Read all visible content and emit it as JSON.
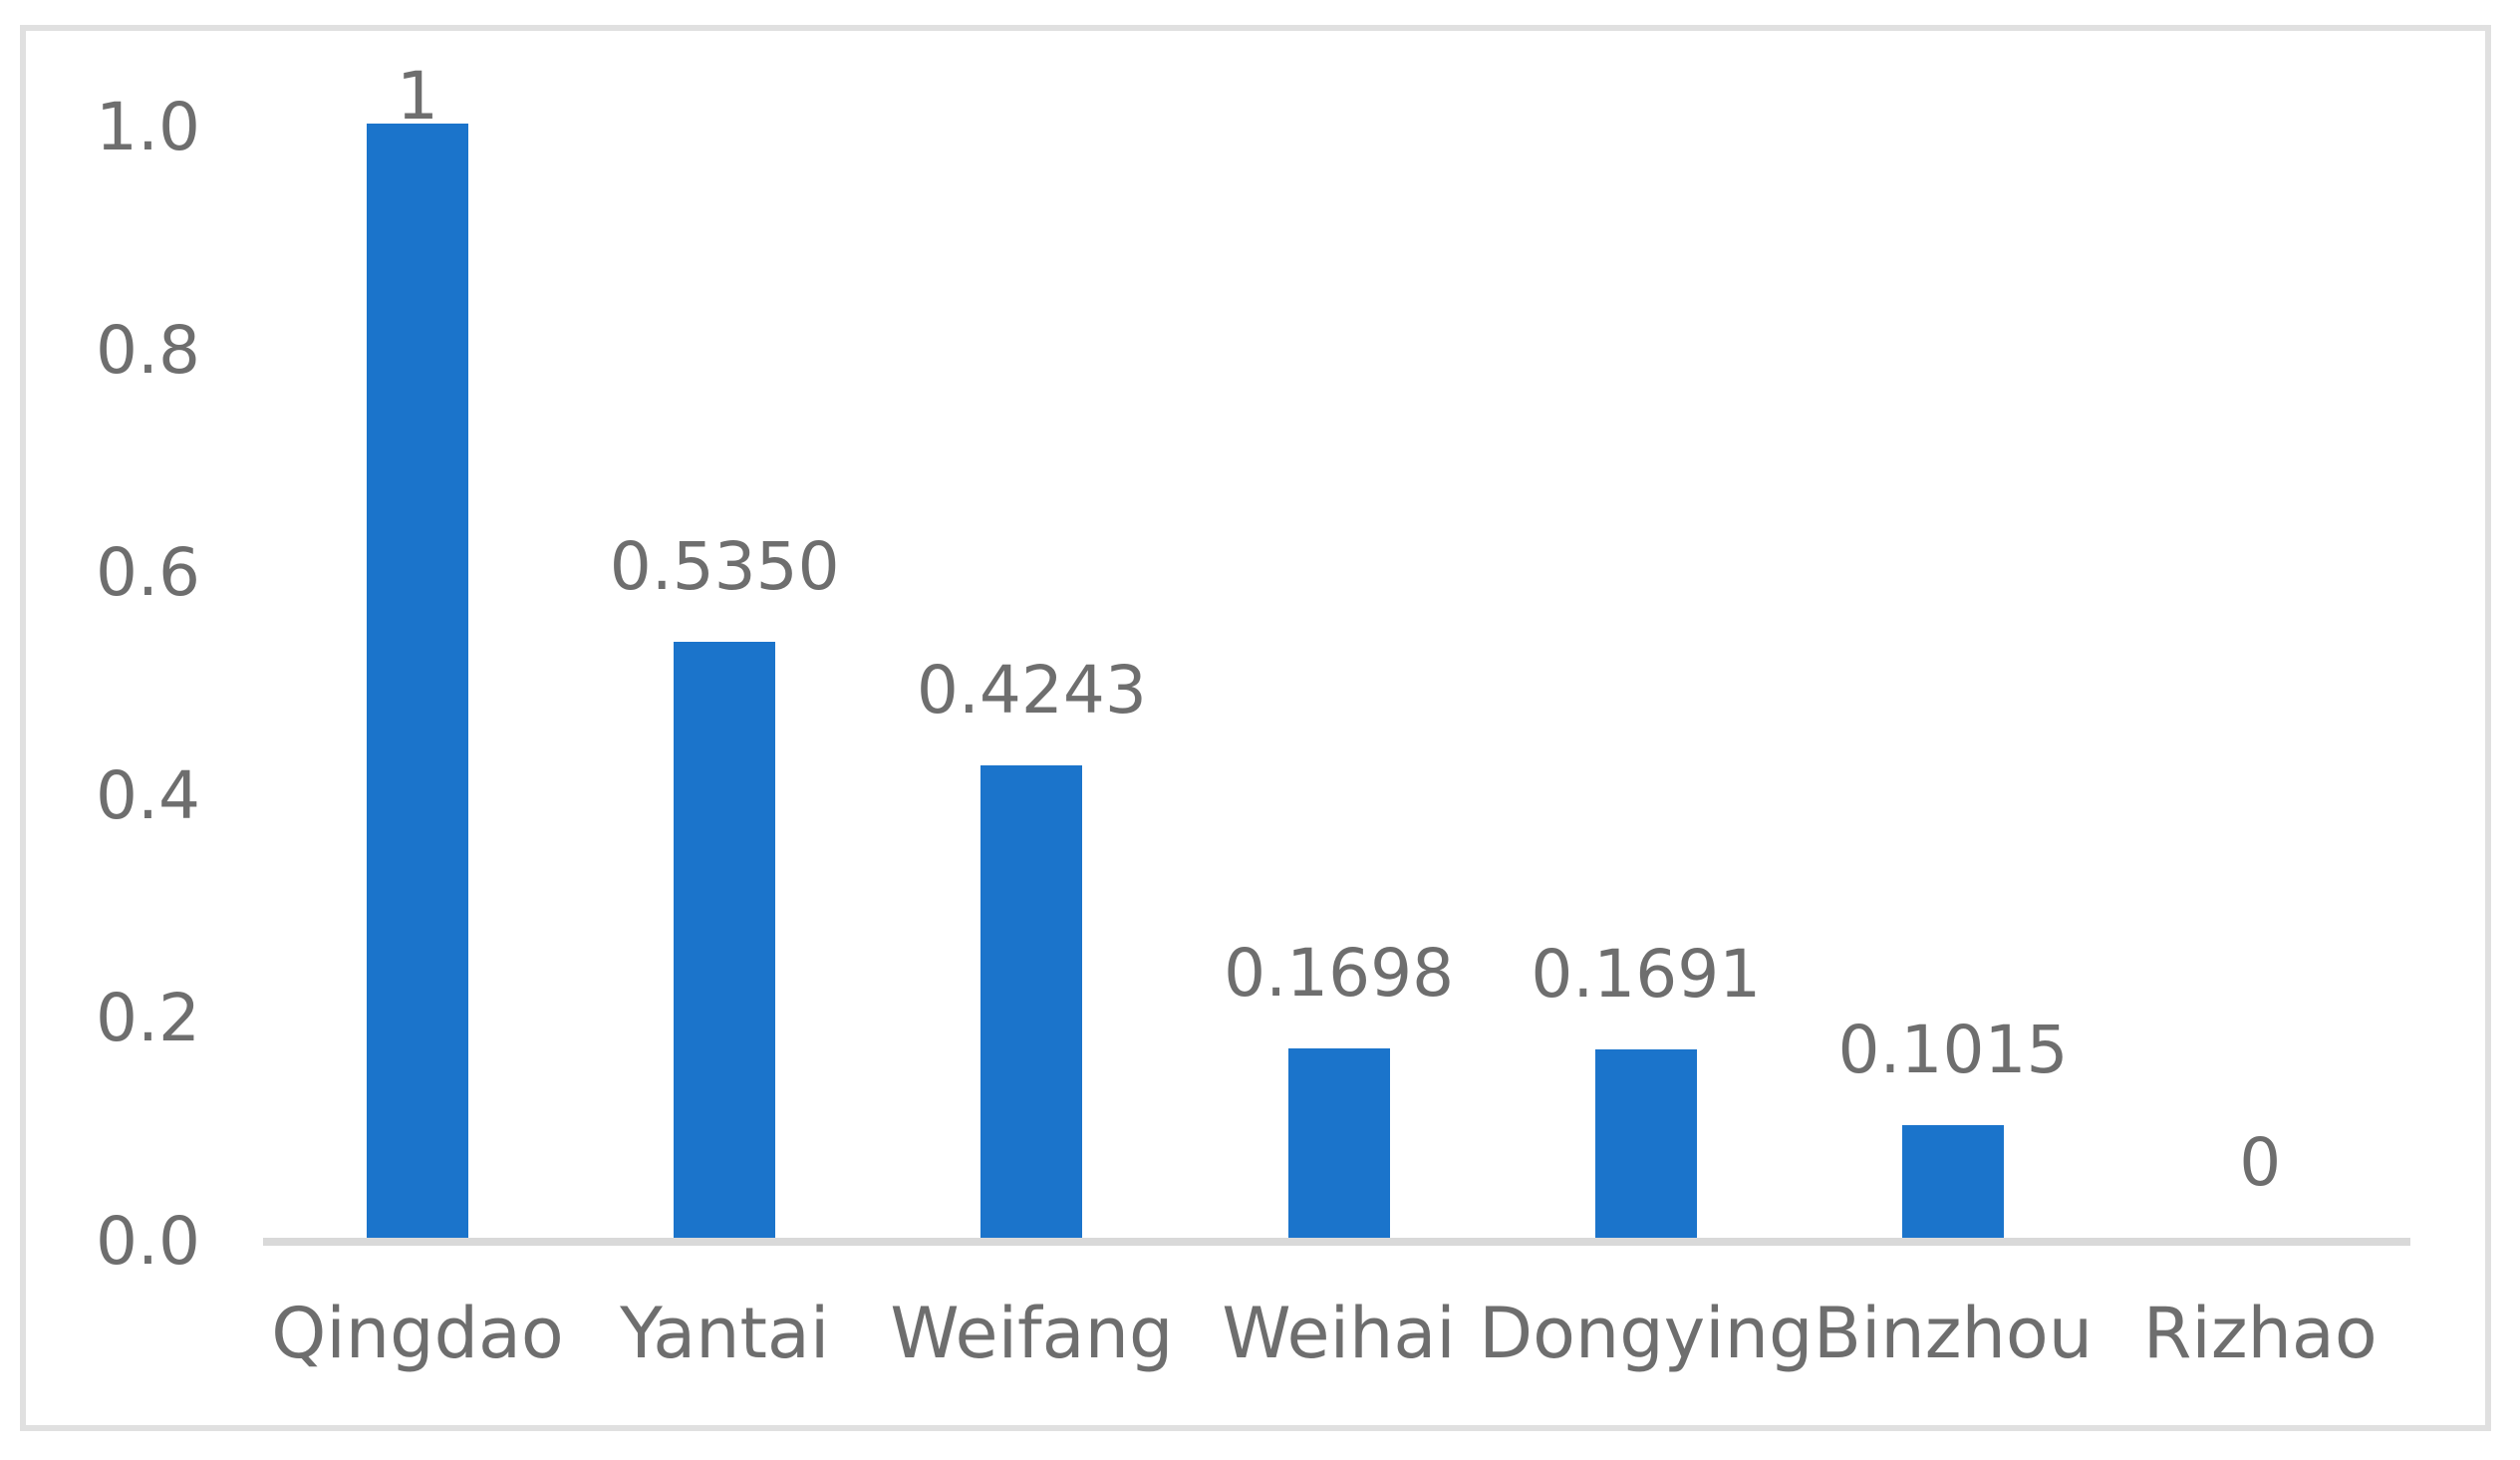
{
  "chart_data": {
    "type": "bar",
    "title": "",
    "xlabel": "",
    "ylabel": "",
    "categories": [
      "Qingdao",
      "Yantai",
      "Weifang",
      "Weihai",
      "Dongying",
      "Binzhou",
      "Rizhao"
    ],
    "values": [
      1.0,
      0.535,
      0.4243,
      0.1698,
      0.1691,
      0.1015,
      0
    ],
    "data_labels": [
      "1",
      "0.5350",
      "0.4243",
      "0.1698",
      "0.1691",
      "0.1015",
      "0"
    ],
    "y_ticks": [
      {
        "label": "1.0",
        "value": 1.0
      },
      {
        "label": "0.8",
        "value": 0.8
      },
      {
        "label": "0.6",
        "value": 0.6
      },
      {
        "label": "0.4",
        "value": 0.4
      },
      {
        "label": "0.2",
        "value": 0.2
      },
      {
        "label": "0.0",
        "value": 0.0
      }
    ],
    "ylim": [
      0,
      1.0
    ],
    "grid": false,
    "legend": false,
    "bar_color": "#1b74cb",
    "text_color": "#6e6e6e",
    "axis_line_color": "#d9d9d9",
    "frame_border_color": "#e0e0e0"
  }
}
